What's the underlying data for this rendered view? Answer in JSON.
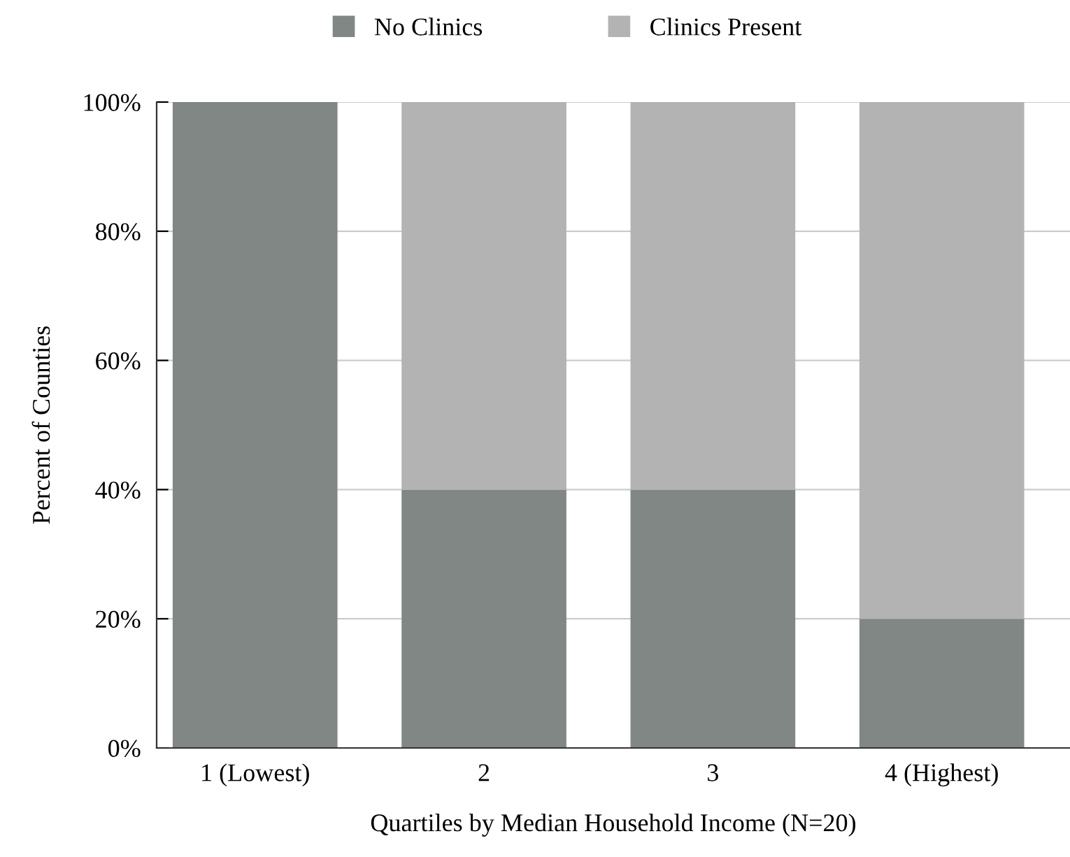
{
  "chart_data": {
    "type": "bar",
    "stacked": true,
    "xlabel": "Quartiles by Median Household Income (N=20)",
    "ylabel": "Percent of Counties",
    "categories": [
      "1 (Lowest)",
      "2",
      "3",
      "4 (Highest)"
    ],
    "series": [
      {
        "name": "No Clinics",
        "color": "#808784",
        "values": [
          100,
          40,
          40,
          20
        ]
      },
      {
        "name": "Clinics Present",
        "color": "#b3b3b3",
        "values": [
          0,
          60,
          60,
          80
        ]
      }
    ],
    "ylim": [
      0,
      100
    ],
    "yticks": [
      {
        "value": 0,
        "label": "0%"
      },
      {
        "value": 20,
        "label": "20%"
      },
      {
        "value": 40,
        "label": "40%"
      },
      {
        "value": 60,
        "label": "60%"
      },
      {
        "value": 80,
        "label": "80%"
      },
      {
        "value": 100,
        "label": "100%"
      }
    ],
    "grid": "y",
    "legend": "top"
  }
}
